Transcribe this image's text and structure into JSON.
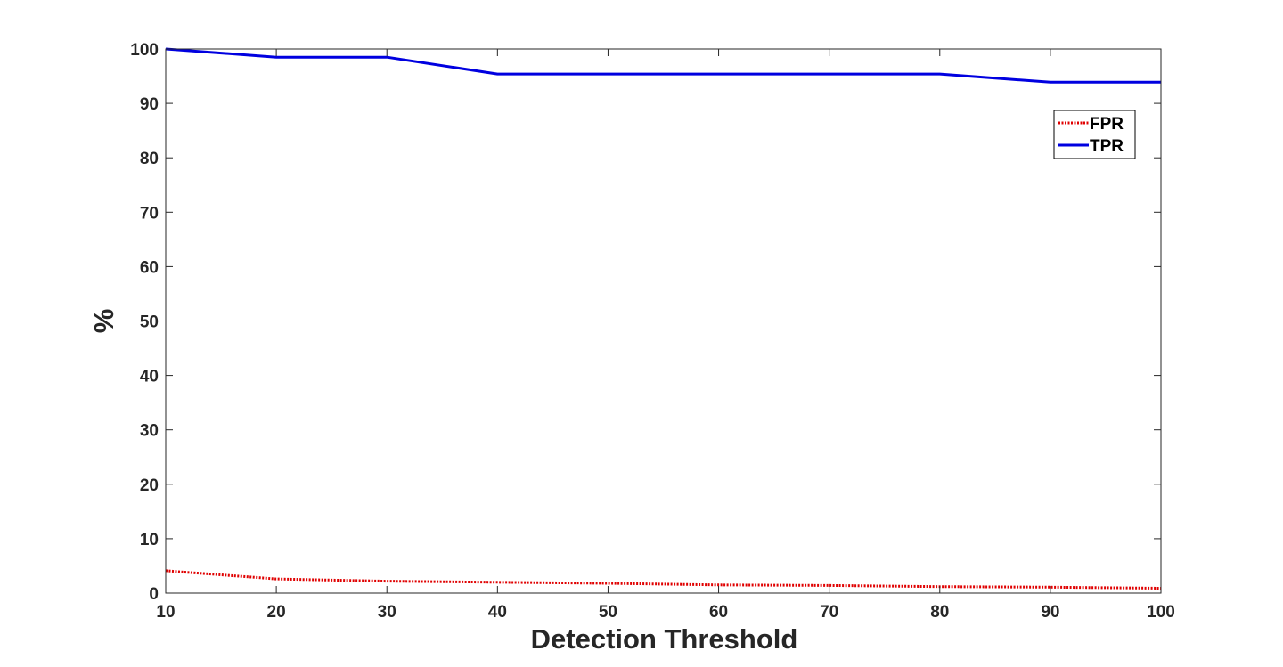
{
  "chart_data": {
    "type": "line",
    "xlabel": "Detection Threshold",
    "ylabel": "%",
    "xlim": [
      10,
      100
    ],
    "ylim": [
      0,
      100
    ],
    "xticks": [
      10,
      20,
      30,
      40,
      50,
      60,
      70,
      80,
      90,
      100
    ],
    "yticks": [
      0,
      10,
      20,
      30,
      40,
      50,
      60,
      70,
      80,
      90,
      100
    ],
    "grid": false,
    "legend_position": "top-right",
    "x": [
      10,
      20,
      30,
      40,
      50,
      60,
      70,
      80,
      90,
      100
    ],
    "series": [
      {
        "name": "FPR",
        "color": "#e00000",
        "style": "dotted",
        "values": [
          4.1,
          2.6,
          2.2,
          2.0,
          1.8,
          1.5,
          1.4,
          1.2,
          1.1,
          0.9
        ]
      },
      {
        "name": "TPR",
        "color": "#0000e0",
        "style": "solid",
        "values": [
          100,
          98.5,
          98.5,
          95.4,
          95.4,
          95.4,
          95.4,
          95.4,
          93.9,
          93.9
        ]
      }
    ]
  }
}
